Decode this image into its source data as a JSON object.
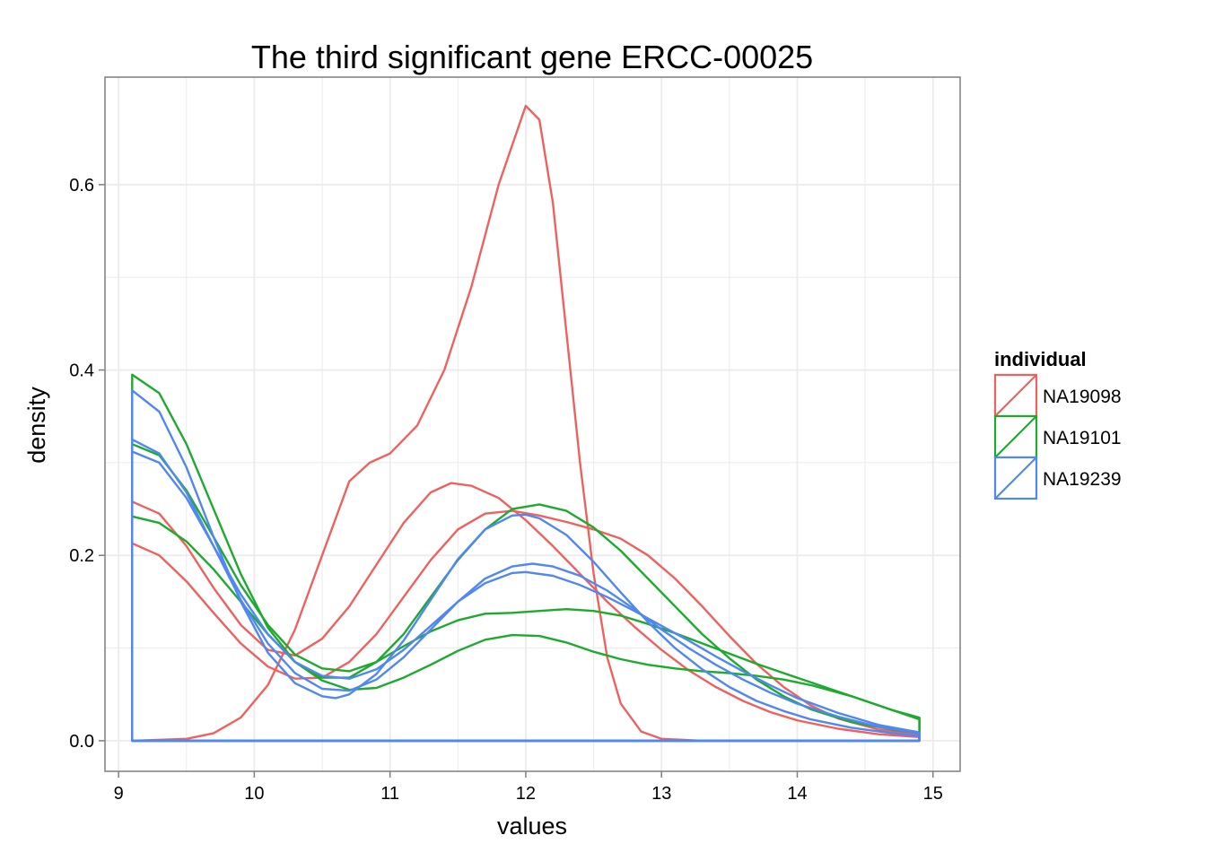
{
  "chart_data": {
    "type": "line",
    "title": "The third significant gene ERCC-00025",
    "xlabel": "values",
    "ylabel": "density",
    "xlim": [
      8.9,
      15.2
    ],
    "ylim": [
      -0.033,
      0.716
    ],
    "xticks": [
      9,
      10,
      11,
      12,
      13,
      14,
      15
    ],
    "yticks": [
      0.0,
      0.2,
      0.4,
      0.6
    ],
    "ytick_labels": [
      "0.0",
      "0.2",
      "0.4",
      "0.6"
    ],
    "grid": true,
    "panel_background": "#ffffff",
    "grid_color": "#ebebeb",
    "legend": {
      "title": "individual",
      "position": "right",
      "entries": [
        {
          "label": "NA19098",
          "color": "#ED625E"
        },
        {
          "label": "NA19101",
          "color": "#1DAA2E"
        },
        {
          "label": "NA19239",
          "color": "#5087F2"
        }
      ]
    },
    "x_start": 9.1,
    "x_end": 14.9,
    "series": [
      {
        "group": "NA19098",
        "color": "#ED625E",
        "points": [
          [
            9.1,
            0.0
          ],
          [
            9.5,
            0.002
          ],
          [
            9.7,
            0.008
          ],
          [
            9.9,
            0.025
          ],
          [
            10.1,
            0.06
          ],
          [
            10.3,
            0.12
          ],
          [
            10.5,
            0.2
          ],
          [
            10.7,
            0.28
          ],
          [
            10.85,
            0.3
          ],
          [
            11.0,
            0.31
          ],
          [
            11.2,
            0.34
          ],
          [
            11.4,
            0.4
          ],
          [
            11.6,
            0.49
          ],
          [
            11.8,
            0.6
          ],
          [
            12.0,
            0.685
          ],
          [
            12.1,
            0.67
          ],
          [
            12.2,
            0.58
          ],
          [
            12.3,
            0.44
          ],
          [
            12.4,
            0.3
          ],
          [
            12.5,
            0.18
          ],
          [
            12.6,
            0.09
          ],
          [
            12.7,
            0.04
          ],
          [
            12.85,
            0.01
          ],
          [
            13.0,
            0.002
          ],
          [
            13.3,
            0.0
          ],
          [
            14.9,
            0.0
          ]
        ]
      },
      {
        "group": "NA19098",
        "color": "#ED625E",
        "points": [
          [
            9.1,
            0.258
          ],
          [
            9.3,
            0.245
          ],
          [
            9.5,
            0.21
          ],
          [
            9.7,
            0.165
          ],
          [
            9.9,
            0.125
          ],
          [
            10.1,
            0.098
          ],
          [
            10.3,
            0.092
          ],
          [
            10.5,
            0.11
          ],
          [
            10.7,
            0.145
          ],
          [
            10.9,
            0.19
          ],
          [
            11.1,
            0.235
          ],
          [
            11.3,
            0.268
          ],
          [
            11.45,
            0.278
          ],
          [
            11.6,
            0.275
          ],
          [
            11.8,
            0.262
          ],
          [
            12.0,
            0.238
          ],
          [
            12.2,
            0.21
          ],
          [
            12.4,
            0.18
          ],
          [
            12.6,
            0.15
          ],
          [
            12.8,
            0.123
          ],
          [
            13.0,
            0.098
          ],
          [
            13.2,
            0.076
          ],
          [
            13.4,
            0.058
          ],
          [
            13.6,
            0.043
          ],
          [
            13.8,
            0.031
          ],
          [
            14.0,
            0.022
          ],
          [
            14.3,
            0.013
          ],
          [
            14.6,
            0.007
          ],
          [
            14.9,
            0.004
          ]
        ]
      },
      {
        "group": "NA19098",
        "color": "#ED625E",
        "points": [
          [
            9.1,
            0.213
          ],
          [
            9.3,
            0.2
          ],
          [
            9.5,
            0.172
          ],
          [
            9.7,
            0.138
          ],
          [
            9.9,
            0.105
          ],
          [
            10.1,
            0.08
          ],
          [
            10.3,
            0.067
          ],
          [
            10.5,
            0.068
          ],
          [
            10.7,
            0.085
          ],
          [
            10.9,
            0.115
          ],
          [
            11.1,
            0.155
          ],
          [
            11.3,
            0.195
          ],
          [
            11.5,
            0.228
          ],
          [
            11.7,
            0.245
          ],
          [
            11.9,
            0.248
          ],
          [
            12.1,
            0.243
          ],
          [
            12.3,
            0.236
          ],
          [
            12.5,
            0.228
          ],
          [
            12.7,
            0.218
          ],
          [
            12.9,
            0.2
          ],
          [
            13.1,
            0.175
          ],
          [
            13.3,
            0.145
          ],
          [
            13.5,
            0.113
          ],
          [
            13.7,
            0.083
          ],
          [
            13.9,
            0.058
          ],
          [
            14.1,
            0.038
          ],
          [
            14.3,
            0.024
          ],
          [
            14.6,
            0.012
          ],
          [
            14.9,
            0.006
          ]
        ]
      },
      {
        "group": "NA19101",
        "color": "#1DAA2E",
        "points": [
          [
            9.1,
            0.395
          ],
          [
            9.3,
            0.375
          ],
          [
            9.5,
            0.32
          ],
          [
            9.7,
            0.25
          ],
          [
            9.9,
            0.18
          ],
          [
            10.1,
            0.122
          ],
          [
            10.3,
            0.085
          ],
          [
            10.5,
            0.068
          ],
          [
            10.7,
            0.068
          ],
          [
            10.9,
            0.085
          ],
          [
            11.1,
            0.115
          ],
          [
            11.3,
            0.155
          ],
          [
            11.5,
            0.195
          ],
          [
            11.7,
            0.228
          ],
          [
            11.9,
            0.25
          ],
          [
            12.1,
            0.255
          ],
          [
            12.3,
            0.248
          ],
          [
            12.5,
            0.23
          ],
          [
            12.7,
            0.205
          ],
          [
            12.9,
            0.175
          ],
          [
            13.1,
            0.145
          ],
          [
            13.3,
            0.115
          ],
          [
            13.5,
            0.089
          ],
          [
            13.7,
            0.066
          ],
          [
            13.9,
            0.048
          ],
          [
            14.1,
            0.034
          ],
          [
            14.4,
            0.02
          ],
          [
            14.7,
            0.012
          ],
          [
            14.9,
            0.008
          ]
        ]
      },
      {
        "group": "NA19101",
        "color": "#1DAA2E",
        "points": [
          [
            9.1,
            0.32
          ],
          [
            9.3,
            0.308
          ],
          [
            9.5,
            0.27
          ],
          [
            9.7,
            0.22
          ],
          [
            9.9,
            0.168
          ],
          [
            10.1,
            0.125
          ],
          [
            10.3,
            0.093
          ],
          [
            10.5,
            0.078
          ],
          [
            10.7,
            0.075
          ],
          [
            10.9,
            0.085
          ],
          [
            11.1,
            0.102
          ],
          [
            11.3,
            0.118
          ],
          [
            11.5,
            0.13
          ],
          [
            11.7,
            0.137
          ],
          [
            11.9,
            0.138
          ],
          [
            12.1,
            0.14
          ],
          [
            12.3,
            0.142
          ],
          [
            12.5,
            0.14
          ],
          [
            12.7,
            0.135
          ],
          [
            12.9,
            0.126
          ],
          [
            13.1,
            0.116
          ],
          [
            13.3,
            0.105
          ],
          [
            13.5,
            0.094
          ],
          [
            13.7,
            0.083
          ],
          [
            13.9,
            0.073
          ],
          [
            14.1,
            0.063
          ],
          [
            14.4,
            0.048
          ],
          [
            14.7,
            0.033
          ],
          [
            14.9,
            0.025
          ]
        ]
      },
      {
        "group": "NA19101",
        "color": "#1DAA2E",
        "points": [
          [
            9.1,
            0.242
          ],
          [
            9.3,
            0.235
          ],
          [
            9.5,
            0.215
          ],
          [
            9.7,
            0.185
          ],
          [
            9.9,
            0.15
          ],
          [
            10.1,
            0.115
          ],
          [
            10.3,
            0.085
          ],
          [
            10.5,
            0.065
          ],
          [
            10.7,
            0.055
          ],
          [
            10.9,
            0.057
          ],
          [
            11.1,
            0.068
          ],
          [
            11.3,
            0.082
          ],
          [
            11.5,
            0.097
          ],
          [
            11.7,
            0.109
          ],
          [
            11.9,
            0.114
          ],
          [
            12.1,
            0.113
          ],
          [
            12.3,
            0.106
          ],
          [
            12.5,
            0.096
          ],
          [
            12.7,
            0.088
          ],
          [
            12.9,
            0.082
          ],
          [
            13.1,
            0.078
          ],
          [
            13.3,
            0.075
          ],
          [
            13.5,
            0.073
          ],
          [
            13.7,
            0.07
          ],
          [
            13.9,
            0.066
          ],
          [
            14.1,
            0.06
          ],
          [
            14.4,
            0.048
          ],
          [
            14.7,
            0.033
          ],
          [
            14.9,
            0.023
          ]
        ]
      },
      {
        "group": "NA19239",
        "color": "#5087F2",
        "points": [
          [
            9.1,
            0.378
          ],
          [
            9.3,
            0.355
          ],
          [
            9.5,
            0.295
          ],
          [
            9.7,
            0.22
          ],
          [
            9.9,
            0.15
          ],
          [
            10.1,
            0.095
          ],
          [
            10.3,
            0.062
          ],
          [
            10.5,
            0.048
          ],
          [
            10.6,
            0.046
          ],
          [
            10.7,
            0.05
          ],
          [
            10.9,
            0.072
          ],
          [
            11.1,
            0.108
          ],
          [
            11.3,
            0.152
          ],
          [
            11.5,
            0.196
          ],
          [
            11.7,
            0.228
          ],
          [
            11.9,
            0.243
          ],
          [
            12.0,
            0.244
          ],
          [
            12.1,
            0.24
          ],
          [
            12.3,
            0.222
          ],
          [
            12.5,
            0.193
          ],
          [
            12.7,
            0.16
          ],
          [
            12.9,
            0.128
          ],
          [
            13.1,
            0.1
          ],
          [
            13.3,
            0.077
          ],
          [
            13.5,
            0.058
          ],
          [
            13.7,
            0.043
          ],
          [
            13.9,
            0.032
          ],
          [
            14.1,
            0.023
          ],
          [
            14.4,
            0.014
          ],
          [
            14.7,
            0.008
          ],
          [
            14.9,
            0.005
          ]
        ]
      },
      {
        "group": "NA19239",
        "color": "#5087F2",
        "points": [
          [
            9.1,
            0.325
          ],
          [
            9.3,
            0.31
          ],
          [
            9.5,
            0.268
          ],
          [
            9.7,
            0.21
          ],
          [
            9.9,
            0.152
          ],
          [
            10.1,
            0.105
          ],
          [
            10.3,
            0.073
          ],
          [
            10.5,
            0.056
          ],
          [
            10.7,
            0.054
          ],
          [
            10.9,
            0.066
          ],
          [
            11.1,
            0.09
          ],
          [
            11.3,
            0.12
          ],
          [
            11.5,
            0.15
          ],
          [
            11.7,
            0.175
          ],
          [
            11.9,
            0.188
          ],
          [
            12.05,
            0.191
          ],
          [
            12.2,
            0.188
          ],
          [
            12.4,
            0.178
          ],
          [
            12.6,
            0.162
          ],
          [
            12.8,
            0.142
          ],
          [
            13.0,
            0.12
          ],
          [
            13.2,
            0.1
          ],
          [
            13.4,
            0.082
          ],
          [
            13.6,
            0.066
          ],
          [
            13.8,
            0.052
          ],
          [
            14.0,
            0.04
          ],
          [
            14.3,
            0.026
          ],
          [
            14.6,
            0.015
          ],
          [
            14.9,
            0.008
          ]
        ]
      },
      {
        "group": "NA19239",
        "color": "#5087F2",
        "points": [
          [
            9.1,
            0.312
          ],
          [
            9.3,
            0.3
          ],
          [
            9.5,
            0.262
          ],
          [
            9.7,
            0.21
          ],
          [
            9.9,
            0.158
          ],
          [
            10.1,
            0.115
          ],
          [
            10.3,
            0.085
          ],
          [
            10.5,
            0.07
          ],
          [
            10.7,
            0.067
          ],
          [
            10.9,
            0.077
          ],
          [
            11.1,
            0.098
          ],
          [
            11.3,
            0.124
          ],
          [
            11.5,
            0.15
          ],
          [
            11.7,
            0.17
          ],
          [
            11.9,
            0.181
          ],
          [
            12.0,
            0.182
          ],
          [
            12.2,
            0.178
          ],
          [
            12.4,
            0.168
          ],
          [
            12.6,
            0.155
          ],
          [
            12.8,
            0.14
          ],
          [
            13.0,
            0.124
          ],
          [
            13.2,
            0.108
          ],
          [
            13.4,
            0.091
          ],
          [
            13.6,
            0.075
          ],
          [
            13.8,
            0.06
          ],
          [
            14.0,
            0.046
          ],
          [
            14.3,
            0.03
          ],
          [
            14.6,
            0.017
          ],
          [
            14.9,
            0.009
          ]
        ]
      }
    ]
  }
}
